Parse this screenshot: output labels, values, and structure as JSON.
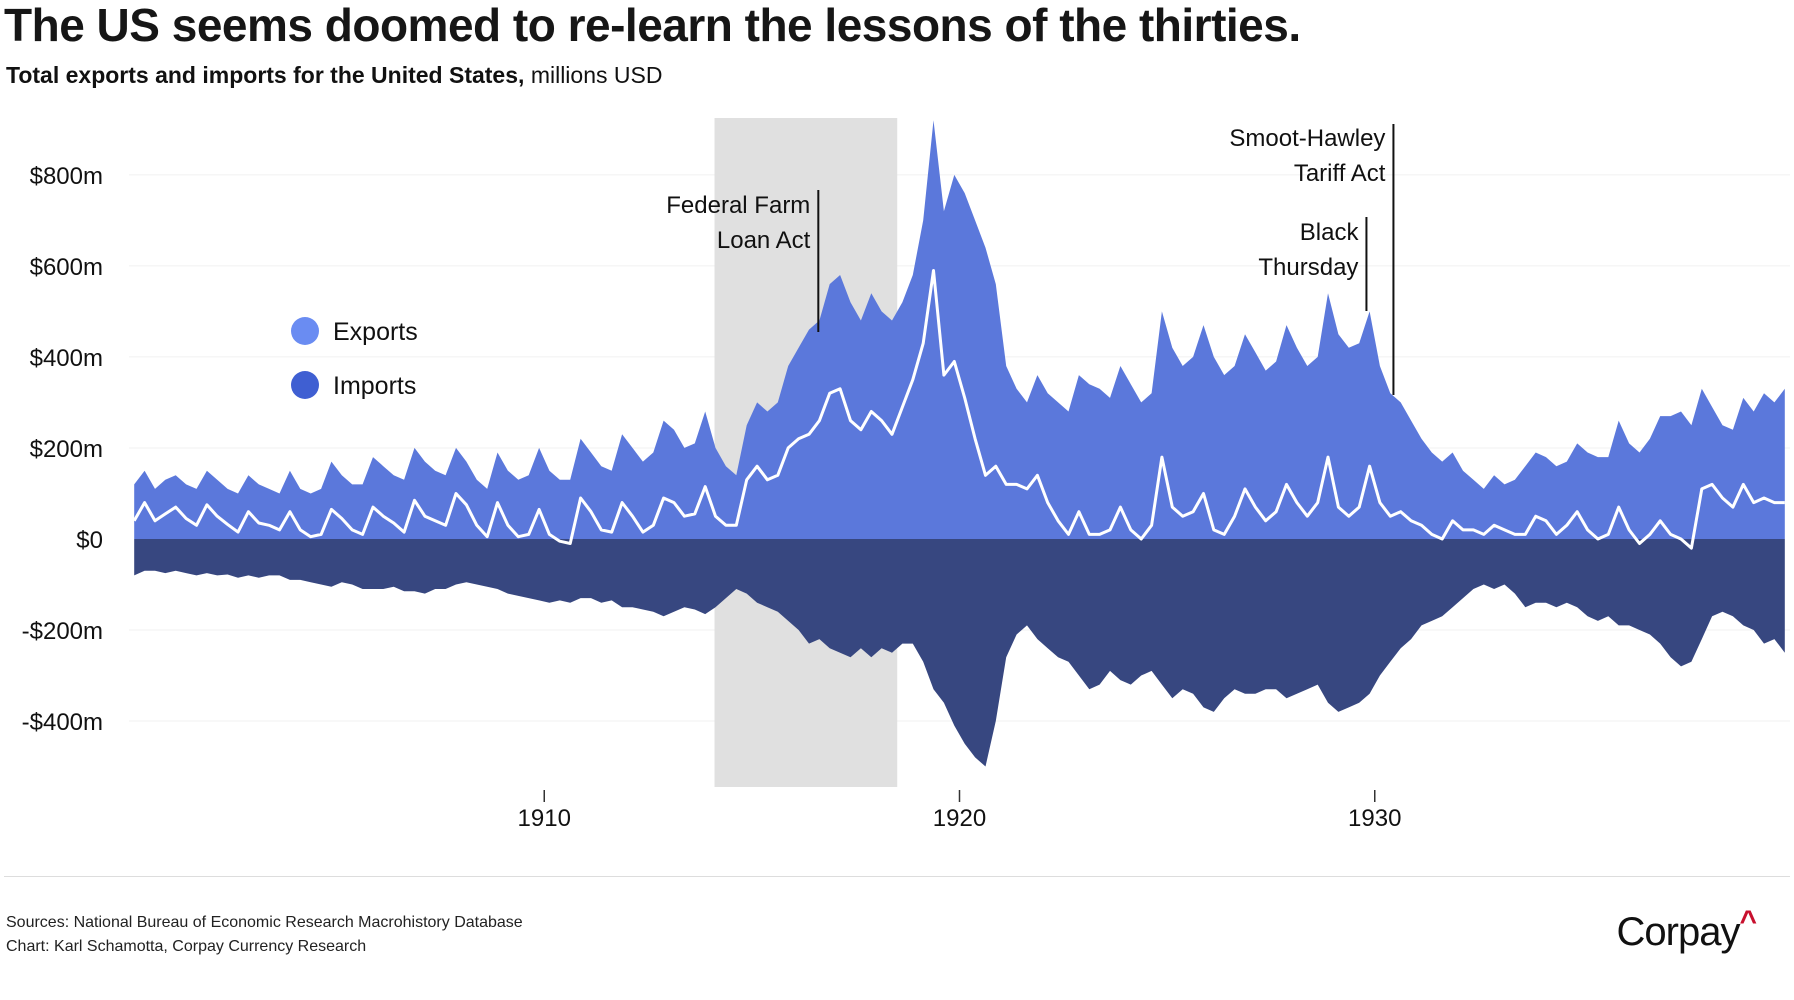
{
  "header": {
    "title": "The US seems doomed to re-learn the lessons of the thirties.",
    "subtitle_bold": "Total exports and imports for the United States,",
    "subtitle_unit": "millions USD"
  },
  "footer": {
    "sources": "Sources: National Bureau of Economic Research Macrohistory Database",
    "credit": "Chart: Karl Schamotta, Corpay Currency Research",
    "logo": "Corpay",
    "logo_mark": "^"
  },
  "colors": {
    "exports": "#5B78DB",
    "imports": "#374780",
    "net_line": "#FFFFFF",
    "legend_exports": "#6A8CF2",
    "legend_imports": "#3F5FD2",
    "shading": "#E0E0E0",
    "gridline": "#F0F0F0"
  },
  "chart_data": {
    "type": "area",
    "title": "The US seems doomed to re-learn the lessons of the thirties.",
    "xlabel": "",
    "ylabel": "millions USD",
    "x_start": 1900,
    "x_step": 0.25,
    "xlim": [
      1900,
      1940
    ],
    "ylim": [
      -545,
      925
    ],
    "grid": true,
    "x_ticks": [
      {
        "value": 1910,
        "label": "1910"
      },
      {
        "value": 1920,
        "label": "1920"
      },
      {
        "value": 1930,
        "label": "1930"
      }
    ],
    "y_ticks": [
      {
        "value": 800,
        "label": "$800m"
      },
      {
        "value": 600,
        "label": "$600m"
      },
      {
        "value": 400,
        "label": "$400m"
      },
      {
        "value": 200,
        "label": "$200m"
      },
      {
        "value": 0,
        "label": "$0"
      },
      {
        "value": -200,
        "label": "-$200m"
      },
      {
        "value": -400,
        "label": "-$400m"
      }
    ],
    "legend": {
      "placement": "left",
      "items": [
        {
          "label": "Exports"
        },
        {
          "label": "Imports"
        }
      ]
    },
    "shaded_period": {
      "from": 1914.1,
      "to": 1918.5
    },
    "annotations": [
      {
        "x": 1916.6,
        "lines": [
          "Federal Farm",
          "Loan Act"
        ]
      },
      {
        "x": 1929.8,
        "lines": [
          "Black",
          "Thursday"
        ]
      },
      {
        "x": 1930.45,
        "lines": [
          "Smoot-Hawley",
          "Tariff Act"
        ]
      }
    ],
    "series": [
      {
        "name": "Exports",
        "values": [
          120,
          150,
          110,
          130,
          140,
          120,
          110,
          150,
          130,
          110,
          100,
          140,
          120,
          110,
          100,
          150,
          110,
          100,
          110,
          170,
          140,
          120,
          120,
          180,
          160,
          140,
          130,
          200,
          170,
          150,
          140,
          200,
          170,
          130,
          110,
          190,
          150,
          130,
          140,
          200,
          150,
          130,
          130,
          220,
          190,
          160,
          150,
          230,
          200,
          170,
          190,
          260,
          240,
          200,
          210,
          280,
          200,
          160,
          140,
          250,
          300,
          280,
          300,
          380,
          420,
          460,
          480,
          560,
          580,
          520,
          480,
          540,
          500,
          480,
          520,
          580,
          700,
          920,
          720,
          800,
          760,
          700,
          640,
          560,
          380,
          330,
          300,
          360,
          320,
          300,
          280,
          360,
          340,
          330,
          310,
          380,
          340,
          300,
          320,
          500,
          420,
          380,
          400,
          470,
          400,
          360,
          380,
          450,
          410,
          370,
          390,
          470,
          420,
          380,
          400,
          540,
          450,
          420,
          430,
          500,
          380,
          320,
          300,
          260,
          220,
          190,
          170,
          190,
          150,
          130,
          110,
          140,
          120,
          130,
          160,
          190,
          180,
          160,
          170,
          210,
          190,
          180,
          180,
          260,
          210,
          190,
          220,
          270,
          270,
          280,
          250,
          330,
          290,
          250,
          240,
          310,
          280,
          320,
          300,
          330
        ]
      },
      {
        "name": "Imports",
        "values": [
          80,
          70,
          70,
          75,
          70,
          75,
          80,
          75,
          80,
          78,
          85,
          80,
          85,
          80,
          80,
          90,
          90,
          95,
          100,
          105,
          95,
          100,
          110,
          110,
          110,
          105,
          115,
          115,
          120,
          110,
          110,
          100,
          95,
          100,
          105,
          110,
          120,
          125,
          130,
          135,
          140,
          135,
          140,
          130,
          130,
          140,
          135,
          150,
          150,
          155,
          160,
          170,
          160,
          150,
          155,
          165,
          150,
          130,
          110,
          120,
          140,
          150,
          160,
          180,
          200,
          230,
          220,
          240,
          250,
          260,
          240,
          260,
          240,
          250,
          230,
          230,
          270,
          330,
          360,
          410,
          450,
          480,
          500,
          400,
          260,
          210,
          190,
          220,
          240,
          260,
          270,
          300,
          330,
          320,
          290,
          310,
          320,
          300,
          290,
          320,
          350,
          330,
          340,
          370,
          380,
          350,
          330,
          340,
          340,
          330,
          330,
          350,
          340,
          330,
          320,
          360,
          380,
          370,
          360,
          340,
          300,
          270,
          240,
          220,
          190,
          180,
          170,
          150,
          130,
          110,
          100,
          110,
          100,
          120,
          150,
          140,
          140,
          150,
          140,
          150,
          170,
          180,
          170,
          190,
          190,
          200,
          210,
          230,
          260,
          280,
          270,
          220,
          170,
          160,
          170,
          190,
          200,
          230,
          220,
          250
        ]
      }
    ]
  }
}
